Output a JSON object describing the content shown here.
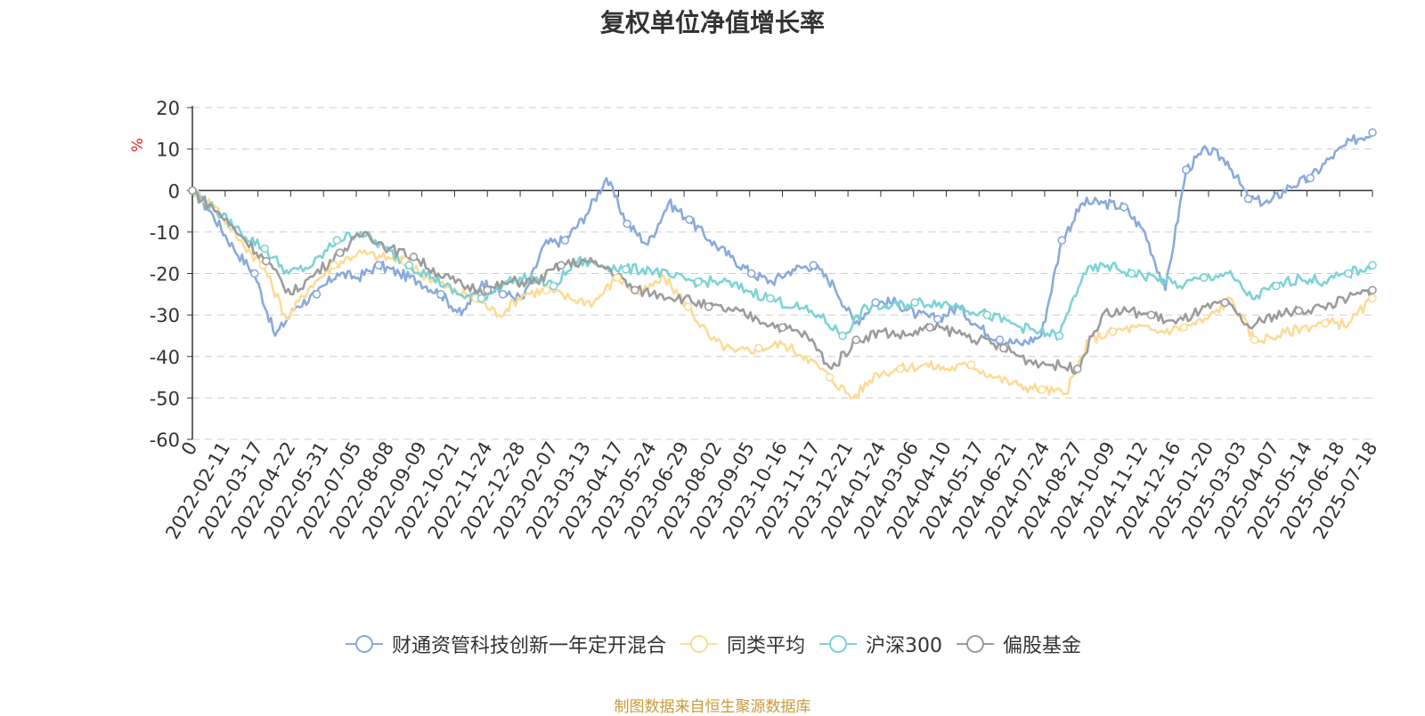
{
  "chart_data": {
    "type": "line",
    "title": "复权单位净值增长率",
    "ylabel": "%",
    "ylim": [
      -60,
      20
    ],
    "yticks": [
      20,
      10,
      0,
      -10,
      -20,
      -30,
      -40,
      -50,
      -60
    ],
    "grid": true,
    "legend_position": "bottom",
    "x_tick_labels": [
      "0",
      "2022-02-11",
      "2022-03-17",
      "2022-04-22",
      "2022-05-31",
      "2022-07-05",
      "2022-08-08",
      "2022-09-09",
      "2022-10-21",
      "2022-11-24",
      "2022-12-28",
      "2023-02-07",
      "2023-03-13",
      "2023-04-17",
      "2023-05-24",
      "2023-06-29",
      "2023-08-02",
      "2023-09-05",
      "2023-10-16",
      "2023-11-17",
      "2023-12-21",
      "2024-01-24",
      "2024-03-06",
      "2024-04-10",
      "2024-05-17",
      "2024-06-21",
      "2024-07-24",
      "2024-08-27",
      "2024-10-09",
      "2024-11-12",
      "2024-12-16",
      "2025-01-20",
      "2025-03-03",
      "2025-04-07",
      "2025-05-14",
      "2025-06-18",
      "2025-07-18"
    ],
    "series": [
      {
        "name": "财通资管科技创新一年定开混合",
        "color": "#8aaadc",
        "values": [
          0,
          -6,
          -14,
          -20,
          -35,
          -28,
          -25,
          -20,
          -21,
          -18,
          -20,
          -22,
          -25,
          -30,
          -22,
          -25,
          -26,
          -13,
          -12,
          -6,
          3,
          -8,
          -13,
          -3,
          -7,
          -12,
          -16,
          -20,
          -22,
          -19,
          -18,
          -23,
          -32,
          -27,
          -27,
          -30,
          -31,
          -28,
          -33,
          -36,
          -37,
          -35,
          -12,
          -3,
          -3,
          -4,
          -10,
          -24,
          5,
          10,
          7,
          -2,
          -3,
          1,
          3,
          8,
          12,
          14
        ]
      },
      {
        "name": "同类平均",
        "color": "#fddb97",
        "values": [
          0,
          -4,
          -12,
          -18,
          -31,
          -23,
          -18,
          -15,
          -16,
          -17,
          -21,
          -24,
          -26,
          -30,
          -25,
          -24,
          -26,
          -27,
          -21,
          -25,
          -21,
          -28,
          -36,
          -39,
          -38,
          -37,
          -40,
          -45,
          -50,
          -44,
          -43,
          -42,
          -43,
          -42,
          -45,
          -47,
          -48,
          -49,
          -36,
          -34,
          -33,
          -34,
          -33,
          -31,
          -26,
          -36,
          -35,
          -33,
          -32,
          -32,
          -26
        ]
      },
      {
        "name": "沪深300",
        "color": "#7dd3d6",
        "values": [
          0,
          -5,
          -10,
          -14,
          -20,
          -18,
          -12,
          -10,
          -14,
          -18,
          -21,
          -25,
          -26,
          -22,
          -21,
          -23,
          -17,
          -18,
          -19,
          -19,
          -21,
          -22,
          -22,
          -24,
          -26,
          -28,
          -30,
          -35,
          -28,
          -28,
          -27,
          -27,
          -28,
          -30,
          -32,
          -34,
          -35,
          -20,
          -18,
          -20,
          -21,
          -23,
          -21,
          -20,
          -26,
          -23,
          -21,
          -22,
          -20,
          -18
        ]
      },
      {
        "name": "偏股基金",
        "color": "#9c9c9c",
        "values": [
          0,
          -5,
          -11,
          -17,
          -25,
          -20,
          -15,
          -10,
          -14,
          -16,
          -20,
          -23,
          -24,
          -22,
          -22,
          -18,
          -17,
          -19,
          -24,
          -25,
          -26,
          -28,
          -29,
          -31,
          -33,
          -35,
          -43,
          -36,
          -34,
          -35,
          -33,
          -34,
          -36,
          -38,
          -41,
          -42,
          -43,
          -30,
          -29,
          -30,
          -32,
          -29,
          -27,
          -33,
          -30,
          -29,
          -28,
          -26,
          -24
        ]
      }
    ]
  },
  "legend": {
    "items": [
      "财通资管科技创新一年定开混合",
      "同类平均",
      "沪深300",
      "偏股基金"
    ]
  },
  "footer": {
    "source": "制图数据来自恒生聚源数据库"
  }
}
